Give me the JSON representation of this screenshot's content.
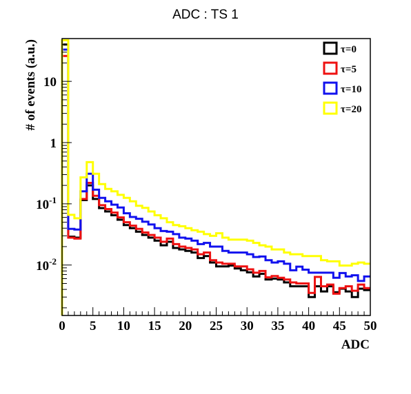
{
  "chart_data": {
    "type": "line",
    "title": "ADC : TS 1",
    "xlabel": "ADC",
    "ylabel": "# of events (a.u.)",
    "xlim": [
      0,
      50
    ],
    "ylim": [
      0.0015,
      50
    ],
    "yscale": "log",
    "grid": false,
    "legend_position": "top-right",
    "x_ticks": [
      0,
      5,
      10,
      15,
      20,
      25,
      30,
      35,
      40,
      45,
      50
    ],
    "y_ticks": [
      {
        "value": 0.01,
        "base": "10",
        "exp": "-2"
      },
      {
        "value": 0.1,
        "base": "10",
        "exp": "-1"
      },
      {
        "value": 1,
        "base": "1",
        "exp": ""
      },
      {
        "value": 10,
        "base": "10",
        "exp": ""
      }
    ],
    "bin_edges": [
      0,
      1,
      2,
      3,
      4,
      5,
      6,
      7,
      8,
      9,
      10,
      11,
      12,
      13,
      14,
      15,
      16,
      17,
      18,
      19,
      20,
      21,
      22,
      23,
      24,
      25,
      26,
      27,
      28,
      29,
      30,
      31,
      32,
      33,
      34,
      35,
      36,
      37,
      38,
      39,
      40,
      41,
      42,
      43,
      44,
      45,
      46,
      47,
      48,
      49,
      50
    ],
    "series": [
      {
        "name": "τ=0",
        "color": "#000000",
        "values": [
          40,
          0.029,
          0.028,
          0.115,
          0.2,
          0.12,
          0.085,
          0.075,
          0.065,
          0.055,
          0.045,
          0.04,
          0.035,
          0.031,
          0.028,
          0.025,
          0.021,
          0.024,
          0.019,
          0.018,
          0.017,
          0.016,
          0.013,
          0.014,
          0.011,
          0.0095,
          0.0095,
          0.0098,
          0.0088,
          0.0082,
          0.0076,
          0.0065,
          0.0072,
          0.0058,
          0.006,
          0.0058,
          0.0052,
          0.0045,
          0.0045,
          0.0045,
          0.003,
          0.0045,
          0.0037,
          0.0045,
          0.0036,
          0.0041,
          0.0037,
          0.003,
          0.0041,
          0.0039
        ]
      },
      {
        "name": "τ=5",
        "color": "#ee1111",
        "values": [
          26,
          0.028,
          0.027,
          0.12,
          0.22,
          0.135,
          0.095,
          0.082,
          0.072,
          0.06,
          0.05,
          0.044,
          0.039,
          0.034,
          0.031,
          0.028,
          0.024,
          0.027,
          0.022,
          0.02,
          0.019,
          0.018,
          0.015,
          0.016,
          0.012,
          0.011,
          0.0105,
          0.0105,
          0.0095,
          0.0095,
          0.0085,
          0.0075,
          0.008,
          0.0063,
          0.0066,
          0.0062,
          0.0058,
          0.0052,
          0.005,
          0.005,
          0.0035,
          0.0064,
          0.0045,
          0.0048,
          0.0034,
          0.0042,
          0.0045,
          0.0038,
          0.0048,
          0.0042
        ]
      },
      {
        "name": "τ=10",
        "color": "#1111ee",
        "values": [
          33,
          0.039,
          0.038,
          0.16,
          0.31,
          0.17,
          0.125,
          0.11,
          0.097,
          0.087,
          0.07,
          0.061,
          0.057,
          0.051,
          0.046,
          0.04,
          0.036,
          0.035,
          0.032,
          0.028,
          0.027,
          0.025,
          0.022,
          0.023,
          0.02,
          0.02,
          0.017,
          0.016,
          0.016,
          0.016,
          0.015,
          0.0135,
          0.0138,
          0.012,
          0.011,
          0.0115,
          0.0105,
          0.0082,
          0.0094,
          0.0084,
          0.0075,
          0.0075,
          0.0075,
          0.0075,
          0.0062,
          0.0074,
          0.0065,
          0.0068,
          0.0055,
          0.0065
        ]
      },
      {
        "name": "τ=20",
        "color": "#ffff00",
        "values": [
          47,
          0.066,
          0.058,
          0.27,
          0.48,
          0.31,
          0.21,
          0.175,
          0.16,
          0.14,
          0.125,
          0.11,
          0.093,
          0.086,
          0.075,
          0.065,
          0.058,
          0.05,
          0.045,
          0.043,
          0.04,
          0.037,
          0.035,
          0.032,
          0.03,
          0.033,
          0.028,
          0.026,
          0.026,
          0.026,
          0.025,
          0.023,
          0.021,
          0.02,
          0.018,
          0.018,
          0.016,
          0.015,
          0.015,
          0.014,
          0.014,
          0.014,
          0.012,
          0.0115,
          0.0115,
          0.0098,
          0.0098,
          0.0105,
          0.011,
          0.0105
        ]
      }
    ]
  }
}
